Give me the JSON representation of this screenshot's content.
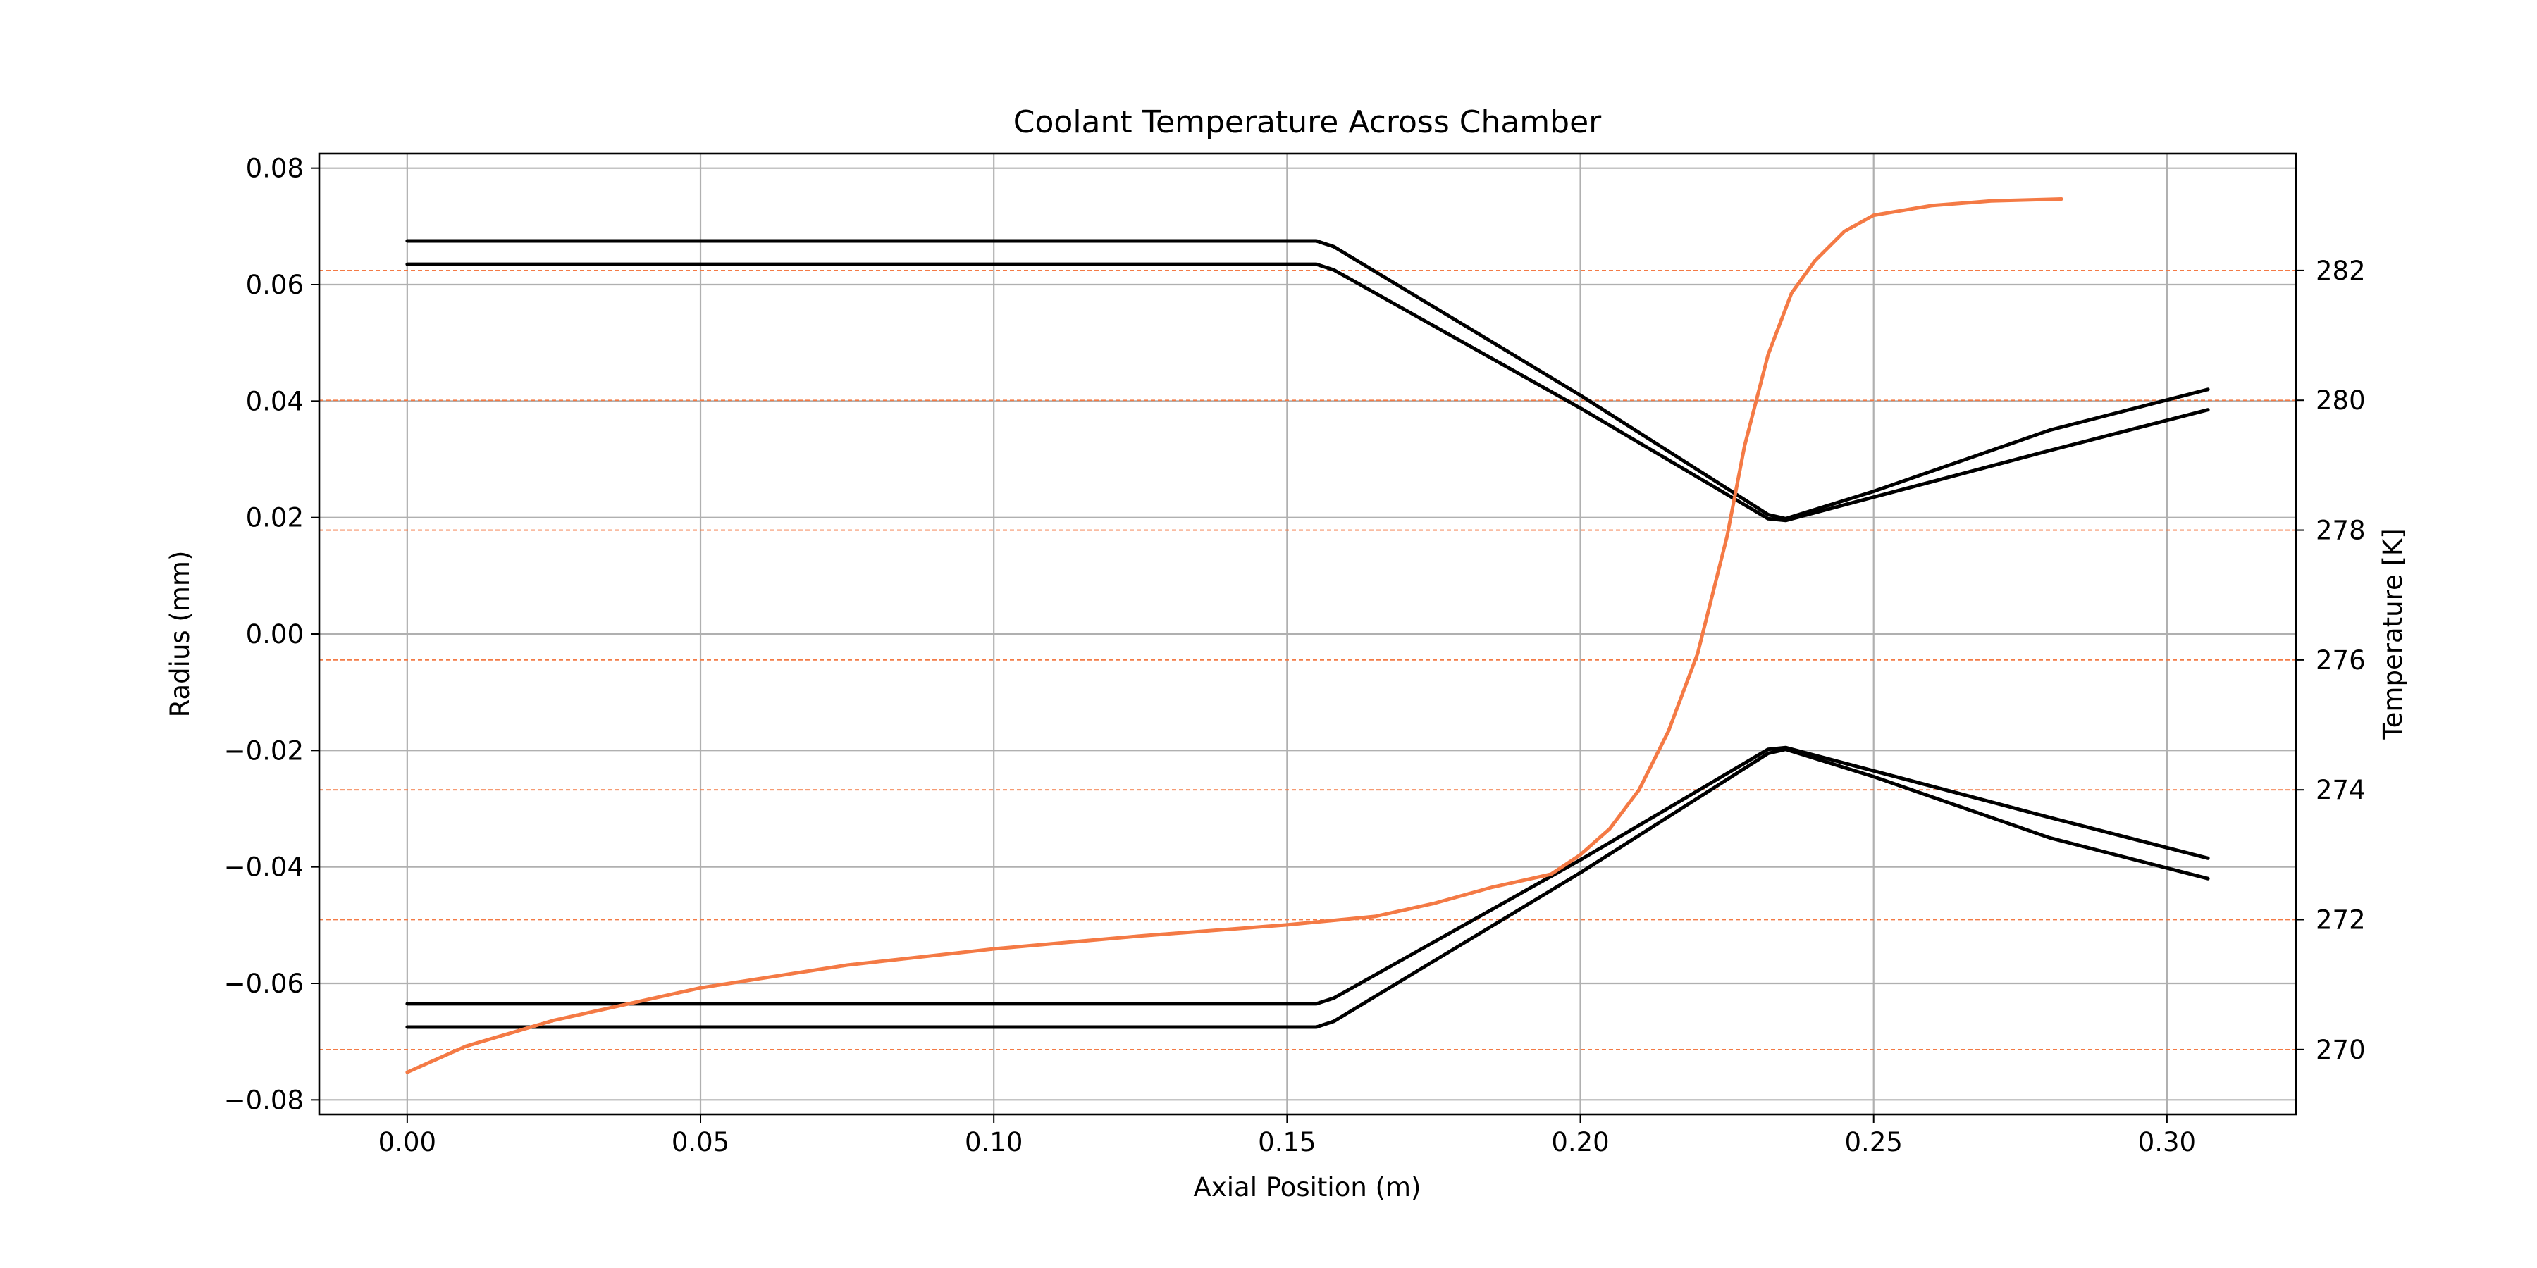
{
  "chart_data": {
    "type": "line",
    "title": "Coolant Temperature Across Chamber",
    "xlabel": "Axial Position (m)",
    "ylabel": "Radius (mm)",
    "y2label": "Temperature [K]",
    "xlim": [
      -0.015,
      0.322
    ],
    "ylim": [
      -0.0825,
      0.0825
    ],
    "y2lim": [
      269.0,
      283.8
    ],
    "xticks": [
      0.0,
      0.05,
      0.1,
      0.15,
      0.2,
      0.25,
      0.3
    ],
    "xtick_labels": [
      "0.00",
      "0.05",
      "0.10",
      "0.15",
      "0.20",
      "0.25",
      "0.30"
    ],
    "yticks": [
      0.08,
      0.06,
      0.04,
      0.02,
      0.0,
      -0.02,
      -0.04,
      -0.06,
      -0.08
    ],
    "ytick_labels": [
      "0.08",
      "0.06",
      "0.04",
      "0.02",
      "0.00",
      "−0.02",
      "−0.04",
      "−0.06",
      "−0.08"
    ],
    "y2ticks": [
      282,
      280,
      278,
      276,
      274,
      272,
      270
    ],
    "y2tick_labels": [
      "282",
      "280",
      "278",
      "276",
      "274",
      "272",
      "270"
    ],
    "grid": true,
    "colors": {
      "contour": "#000000",
      "temperature": "#f47a45",
      "grid": "#b0b0b0"
    },
    "series": [
      {
        "axis": "left",
        "color": "#000000",
        "x": [
          0,
          0.155,
          0.158,
          0.2,
          0.232,
          0.235,
          0.25,
          0.28,
          0.307
        ],
        "y": [
          0.0675,
          0.0675,
          0.0665,
          0.041,
          0.0205,
          0.0198,
          0.0245,
          0.035,
          0.042
        ]
      },
      {
        "axis": "left",
        "color": "#000000",
        "x": [
          0,
          0.155,
          0.158,
          0.2,
          0.232,
          0.235,
          0.25,
          0.28,
          0.307
        ],
        "y": [
          0.0635,
          0.0635,
          0.0625,
          0.0388,
          0.0198,
          0.0195,
          0.0235,
          0.0315,
          0.0385
        ]
      },
      {
        "axis": "left",
        "color": "#000000",
        "x": [
          0,
          0.155,
          0.158,
          0.2,
          0.232,
          0.235,
          0.25,
          0.28,
          0.307
        ],
        "y": [
          -0.0635,
          -0.0635,
          -0.0625,
          -0.0388,
          -0.0198,
          -0.0195,
          -0.0235,
          -0.0315,
          -0.0385
        ]
      },
      {
        "axis": "left",
        "color": "#000000",
        "x": [
          0,
          0.155,
          0.158,
          0.2,
          0.232,
          0.235,
          0.25,
          0.28,
          0.307
        ],
        "y": [
          -0.0675,
          -0.0675,
          -0.0665,
          -0.041,
          -0.0205,
          -0.0198,
          -0.0245,
          -0.035,
          -0.042
        ]
      },
      {
        "axis": "right",
        "color": "#f47a45",
        "x": [
          0,
          0.01,
          0.025,
          0.05,
          0.075,
          0.1,
          0.125,
          0.15,
          0.165,
          0.175,
          0.185,
          0.195,
          0.2,
          0.205,
          0.21,
          0.215,
          0.22,
          0.225,
          0.228,
          0.232,
          0.236,
          0.24,
          0.245,
          0.25,
          0.26,
          0.27,
          0.282
        ],
        "y": [
          269.65,
          270.05,
          270.45,
          270.95,
          271.3,
          271.55,
          271.75,
          271.92,
          272.05,
          272.25,
          272.5,
          272.7,
          273.0,
          273.4,
          274.0,
          274.9,
          276.1,
          277.9,
          279.3,
          280.7,
          281.65,
          282.15,
          282.6,
          282.85,
          283.0,
          283.07,
          283.1
        ]
      }
    ]
  }
}
